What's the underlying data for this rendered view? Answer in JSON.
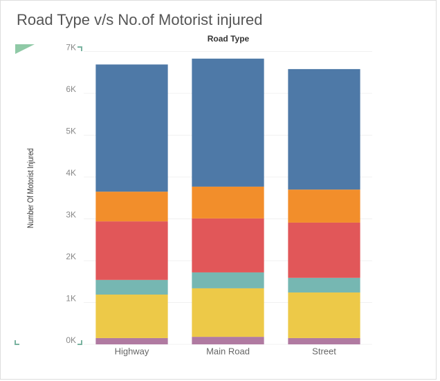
{
  "chart_data": {
    "type": "stacked-bar",
    "title": "Road Type v/s No.of Motorist injured",
    "x_label": "Road Type",
    "y_label": "Number Of Motorist Injured",
    "categories": [
      "Highway",
      "Main Road",
      "Street"
    ],
    "series": [
      {
        "color": "#b07aa1",
        "values": [
          150,
          180,
          150
        ]
      },
      {
        "color": "#edc948",
        "values": [
          1040,
          1160,
          1090
        ]
      },
      {
        "color": "#76b7b2",
        "values": [
          350,
          380,
          350
        ]
      },
      {
        "color": "#e15759",
        "values": [
          1400,
          1290,
          1320
        ]
      },
      {
        "color": "#f28e2b",
        "values": [
          710,
          760,
          790
        ]
      },
      {
        "color": "#4e79a7",
        "values": [
          3040,
          3060,
          2880
        ]
      }
    ],
    "ylim": [
      0,
      7000
    ],
    "yticks": [
      {
        "value": 0,
        "label": "0K"
      },
      {
        "value": 1000,
        "label": "1K"
      },
      {
        "value": 2000,
        "label": "2K"
      },
      {
        "value": 3000,
        "label": "3K"
      },
      {
        "value": 4000,
        "label": "4K"
      },
      {
        "value": 5000,
        "label": "5K"
      },
      {
        "value": 6000,
        "label": "6K"
      },
      {
        "value": 7000,
        "label": "7K"
      }
    ],
    "grid": true
  }
}
